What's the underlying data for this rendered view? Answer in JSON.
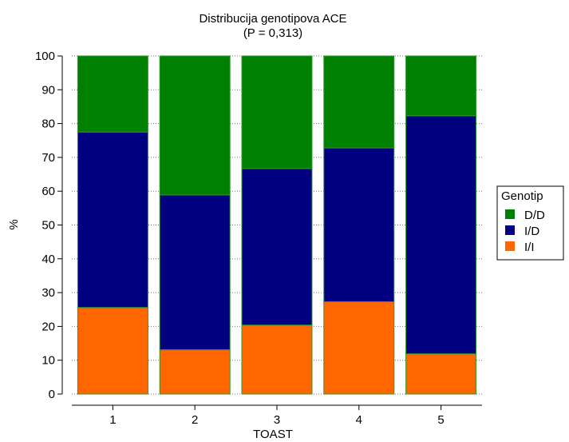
{
  "chart_data": {
    "type": "bar",
    "stacked": true,
    "title": "Distribucija genotipova ACE",
    "subtitle": "(P = 0,313)",
    "xlabel": "TOAST",
    "ylabel": "%",
    "ylim": [
      0,
      100
    ],
    "yticks": [
      0,
      10,
      20,
      30,
      40,
      50,
      60,
      70,
      80,
      90,
      100
    ],
    "categories": [
      "1",
      "2",
      "3",
      "4",
      "5"
    ],
    "grid": "horizontal dotted",
    "legend": {
      "title": "Genotip",
      "position": "right"
    },
    "series": [
      {
        "name": "I/I",
        "color": "#ff6600",
        "values": [
          25.6,
          13.1,
          20.4,
          27.3,
          11.9
        ]
      },
      {
        "name": "I/D",
        "color": "#000080",
        "values": [
          51.9,
          45.8,
          46.3,
          45.5,
          70.4
        ]
      },
      {
        "name": "D/D",
        "color": "#008000",
        "values": [
          22.5,
          41.1,
          33.3,
          27.2,
          17.7
        ]
      }
    ]
  }
}
